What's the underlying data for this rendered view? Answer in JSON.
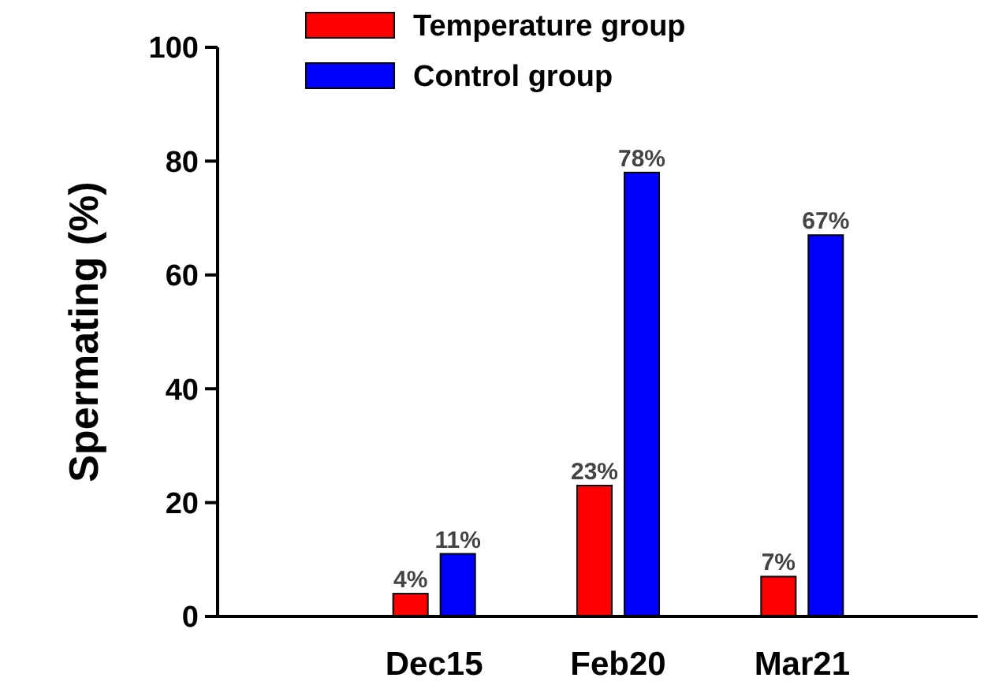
{
  "chart_data": {
    "type": "bar",
    "ylabel": "Spermating (%)",
    "categories": [
      "Dec15",
      "Feb20",
      "Mar21"
    ],
    "series": [
      {
        "name": "Temperature group",
        "color": "#ff0000",
        "values": [
          4,
          23,
          7
        ],
        "value_labels": [
          "4%",
          "23%",
          "7%"
        ]
      },
      {
        "name": "Control group",
        "color": "#0000ff",
        "values": [
          11,
          78,
          67
        ],
        "value_labels": [
          "11%",
          "78%",
          "67%"
        ]
      }
    ],
    "ylim": [
      0,
      100
    ],
    "yticks": [
      0,
      20,
      40,
      60,
      80,
      100
    ],
    "grid": false,
    "legend": "top"
  }
}
